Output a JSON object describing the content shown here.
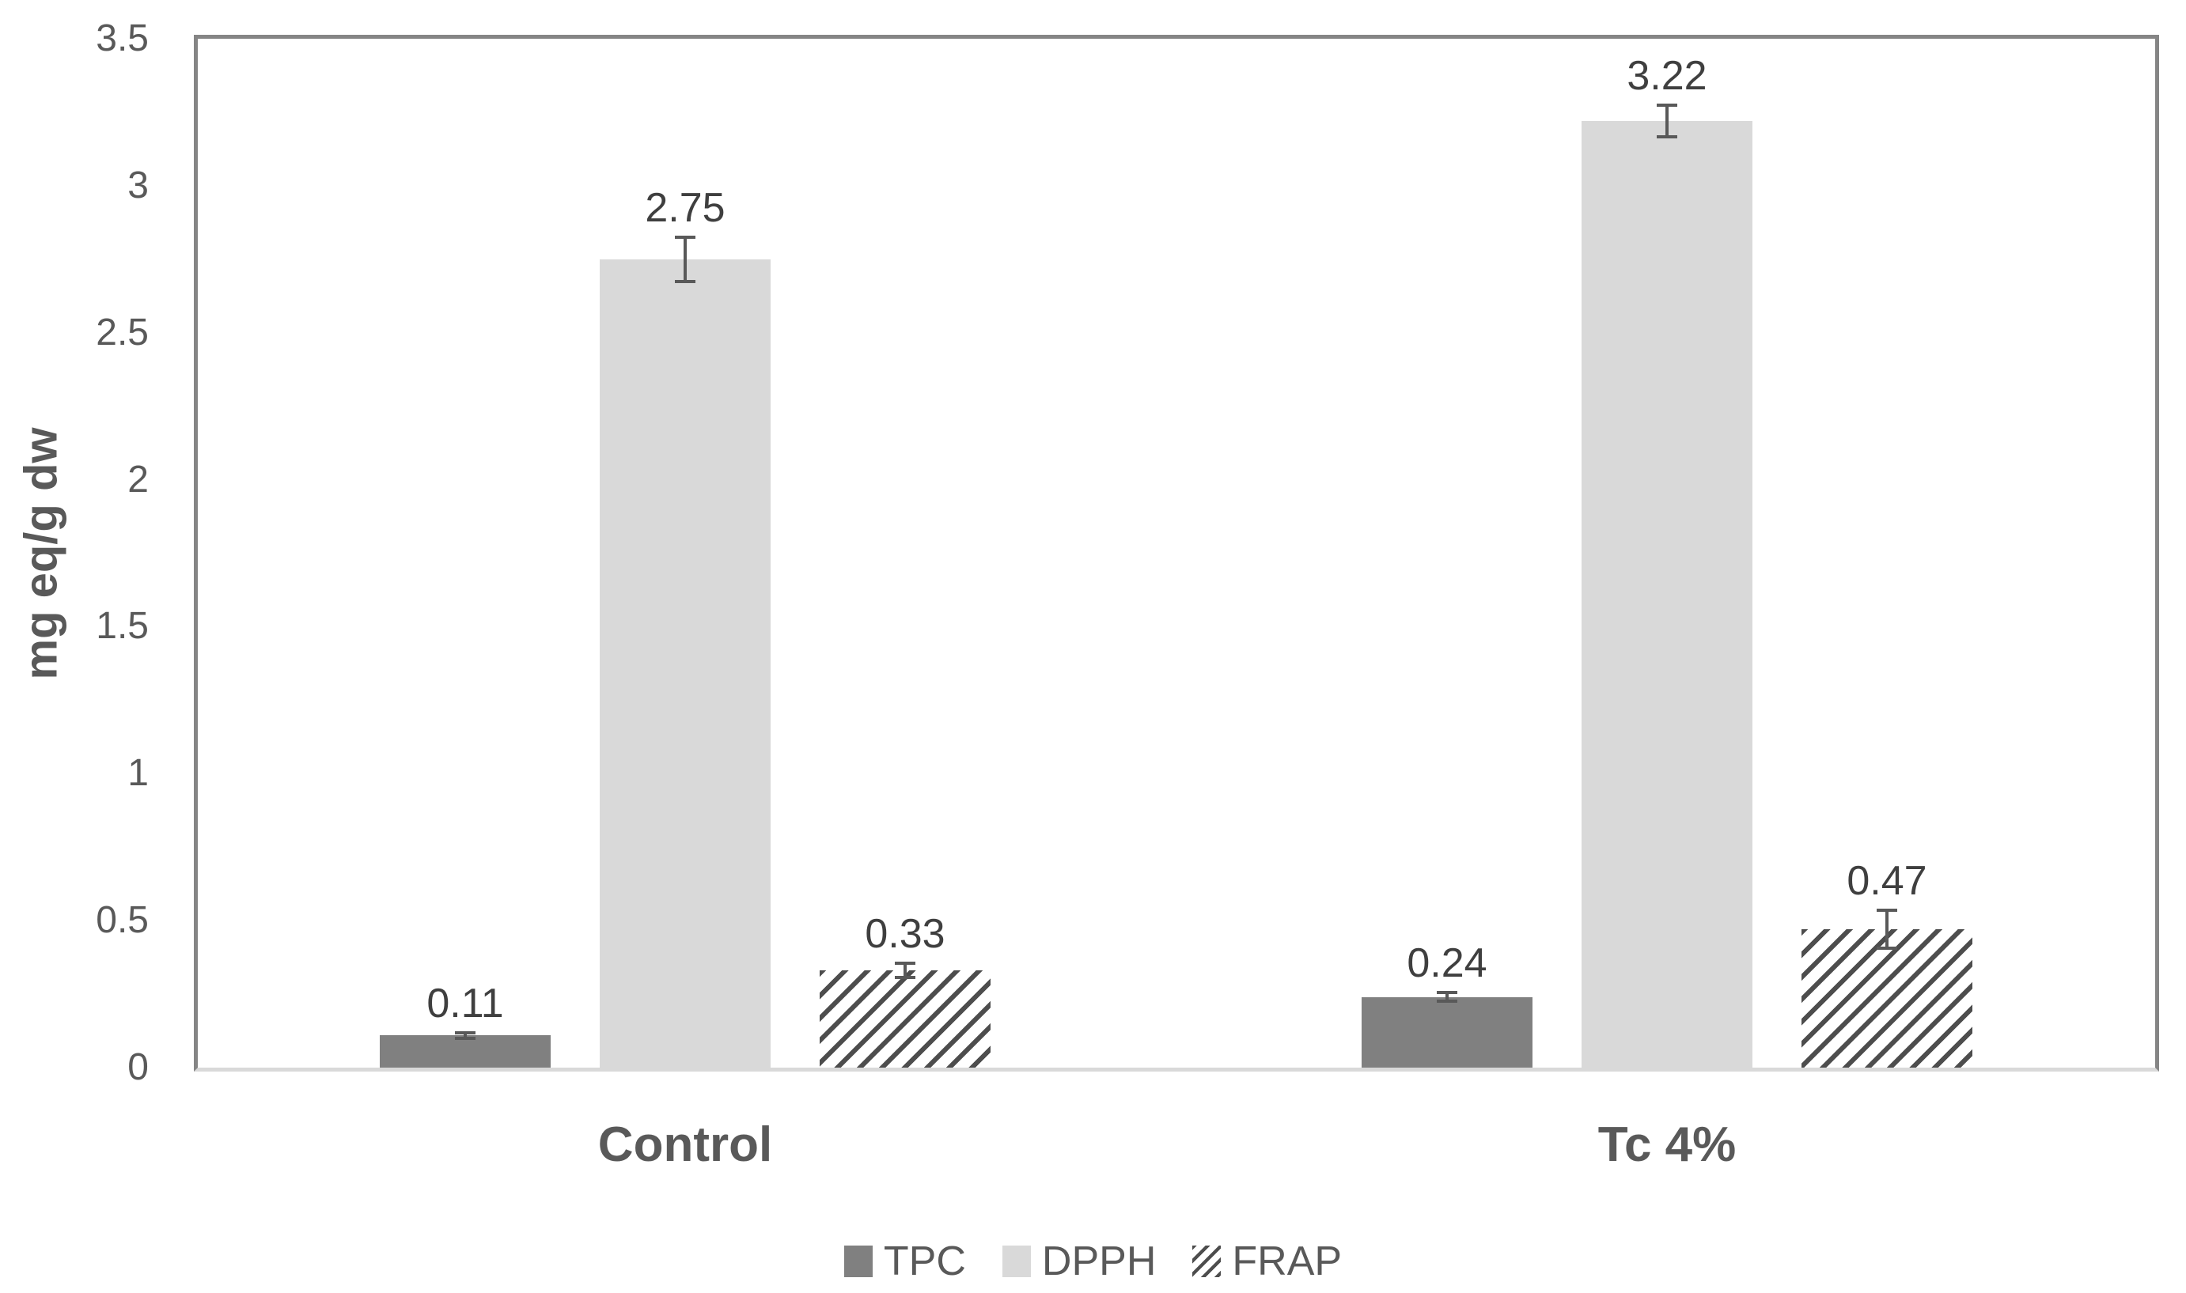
{
  "chart_data": {
    "type": "bar",
    "title": "",
    "xlabel": "",
    "ylabel": "mg eq/g dw",
    "ylim": [
      0,
      3.5
    ],
    "ytick_step": 0.5,
    "yticks": [
      0,
      0.5,
      1,
      1.5,
      2,
      2.5,
      3,
      3.5
    ],
    "grid": false,
    "legend_position": "bottom",
    "categories": [
      "Control",
      "Tc 4%"
    ],
    "series": [
      {
        "name": "TPC",
        "values": [
          0.11,
          0.24
        ],
        "errors": [
          0.015,
          0.02
        ],
        "fill": "solid",
        "color": "#808080"
      },
      {
        "name": "DPPH",
        "values": [
          2.75,
          3.22
        ],
        "errors": [
          0.08,
          0.06
        ],
        "fill": "solid",
        "color": "#d9d9d9"
      },
      {
        "name": "FRAP",
        "values": [
          0.33,
          0.47
        ],
        "errors": [
          0.03,
          0.07
        ],
        "fill": "hatch",
        "color": "#4d4d4d"
      }
    ],
    "value_labels": [
      "0.11",
      "2.75",
      "0.33",
      "0.24",
      "3.22",
      "0.47"
    ]
  },
  "colors": {
    "plot_border": "#858585",
    "baseline": "#d9d9d9",
    "error_bar": "#595959",
    "axis_text": "#595959",
    "value_text": "#3f3f3f",
    "background": "#ffffff"
  }
}
